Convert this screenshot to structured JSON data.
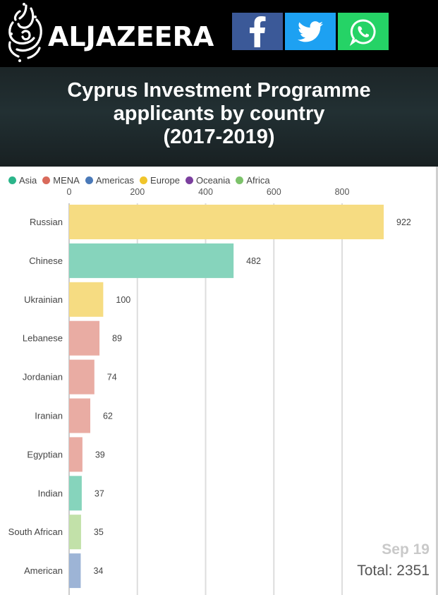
{
  "header": {
    "brand": "ALJAZEERA",
    "logo_icon": "aljazeera-calligraphy-logo",
    "share": [
      {
        "name": "facebook",
        "icon": "facebook-icon",
        "color": "#3b5998"
      },
      {
        "name": "twitter",
        "icon": "twitter-bird-icon",
        "color": "#1da1f2"
      },
      {
        "name": "whatsapp",
        "icon": "whatsapp-icon",
        "color": "#25d366"
      }
    ]
  },
  "title_lines": [
    "Cyprus Investment Programme",
    "applicants by country",
    "(2017-2019)"
  ],
  "footer": {
    "date": "Sep 19",
    "total": "Total: 2351"
  },
  "chart_data": {
    "type": "bar",
    "orientation": "horizontal",
    "title": "Cyprus Investment Programme applicants by country (2017-2019)",
    "legend": [
      {
        "name": "Asia",
        "color": "#2bb58a"
      },
      {
        "name": "MENA",
        "color": "#d96a5b"
      },
      {
        "name": "Americas",
        "color": "#4a79b8"
      },
      {
        "name": "Europe",
        "color": "#f0c52b"
      },
      {
        "name": "Oceania",
        "color": "#7b3f9e"
      },
      {
        "name": "Africa",
        "color": "#7cc26a"
      }
    ],
    "xlim": [
      0,
      950
    ],
    "xticks": [
      0,
      200,
      400,
      600,
      800
    ],
    "grid": true,
    "bars": [
      {
        "label": "Russian",
        "value": 922,
        "region": "Europe",
        "color": "#f6dc82"
      },
      {
        "label": "Chinese",
        "value": 482,
        "region": "Asia",
        "color": "#86d4bc"
      },
      {
        "label": "Ukrainian",
        "value": 100,
        "region": "Europe",
        "color": "#f6dc82"
      },
      {
        "label": "Lebanese",
        "value": 89,
        "region": "MENA",
        "color": "#e9aca3"
      },
      {
        "label": "Jordanian",
        "value": 74,
        "region": "MENA",
        "color": "#e9aca3"
      },
      {
        "label": "Iranian",
        "value": 62,
        "region": "MENA",
        "color": "#e9aca3"
      },
      {
        "label": "Egyptian",
        "value": 39,
        "region": "MENA",
        "color": "#e9aca3"
      },
      {
        "label": "Indian",
        "value": 37,
        "region": "Asia",
        "color": "#86d4bc"
      },
      {
        "label": "South African",
        "value": 35,
        "region": "Africa",
        "color": "#c2e1a9"
      },
      {
        "label": "American",
        "value": 34,
        "region": "Americas",
        "color": "#9db4d6"
      }
    ]
  }
}
